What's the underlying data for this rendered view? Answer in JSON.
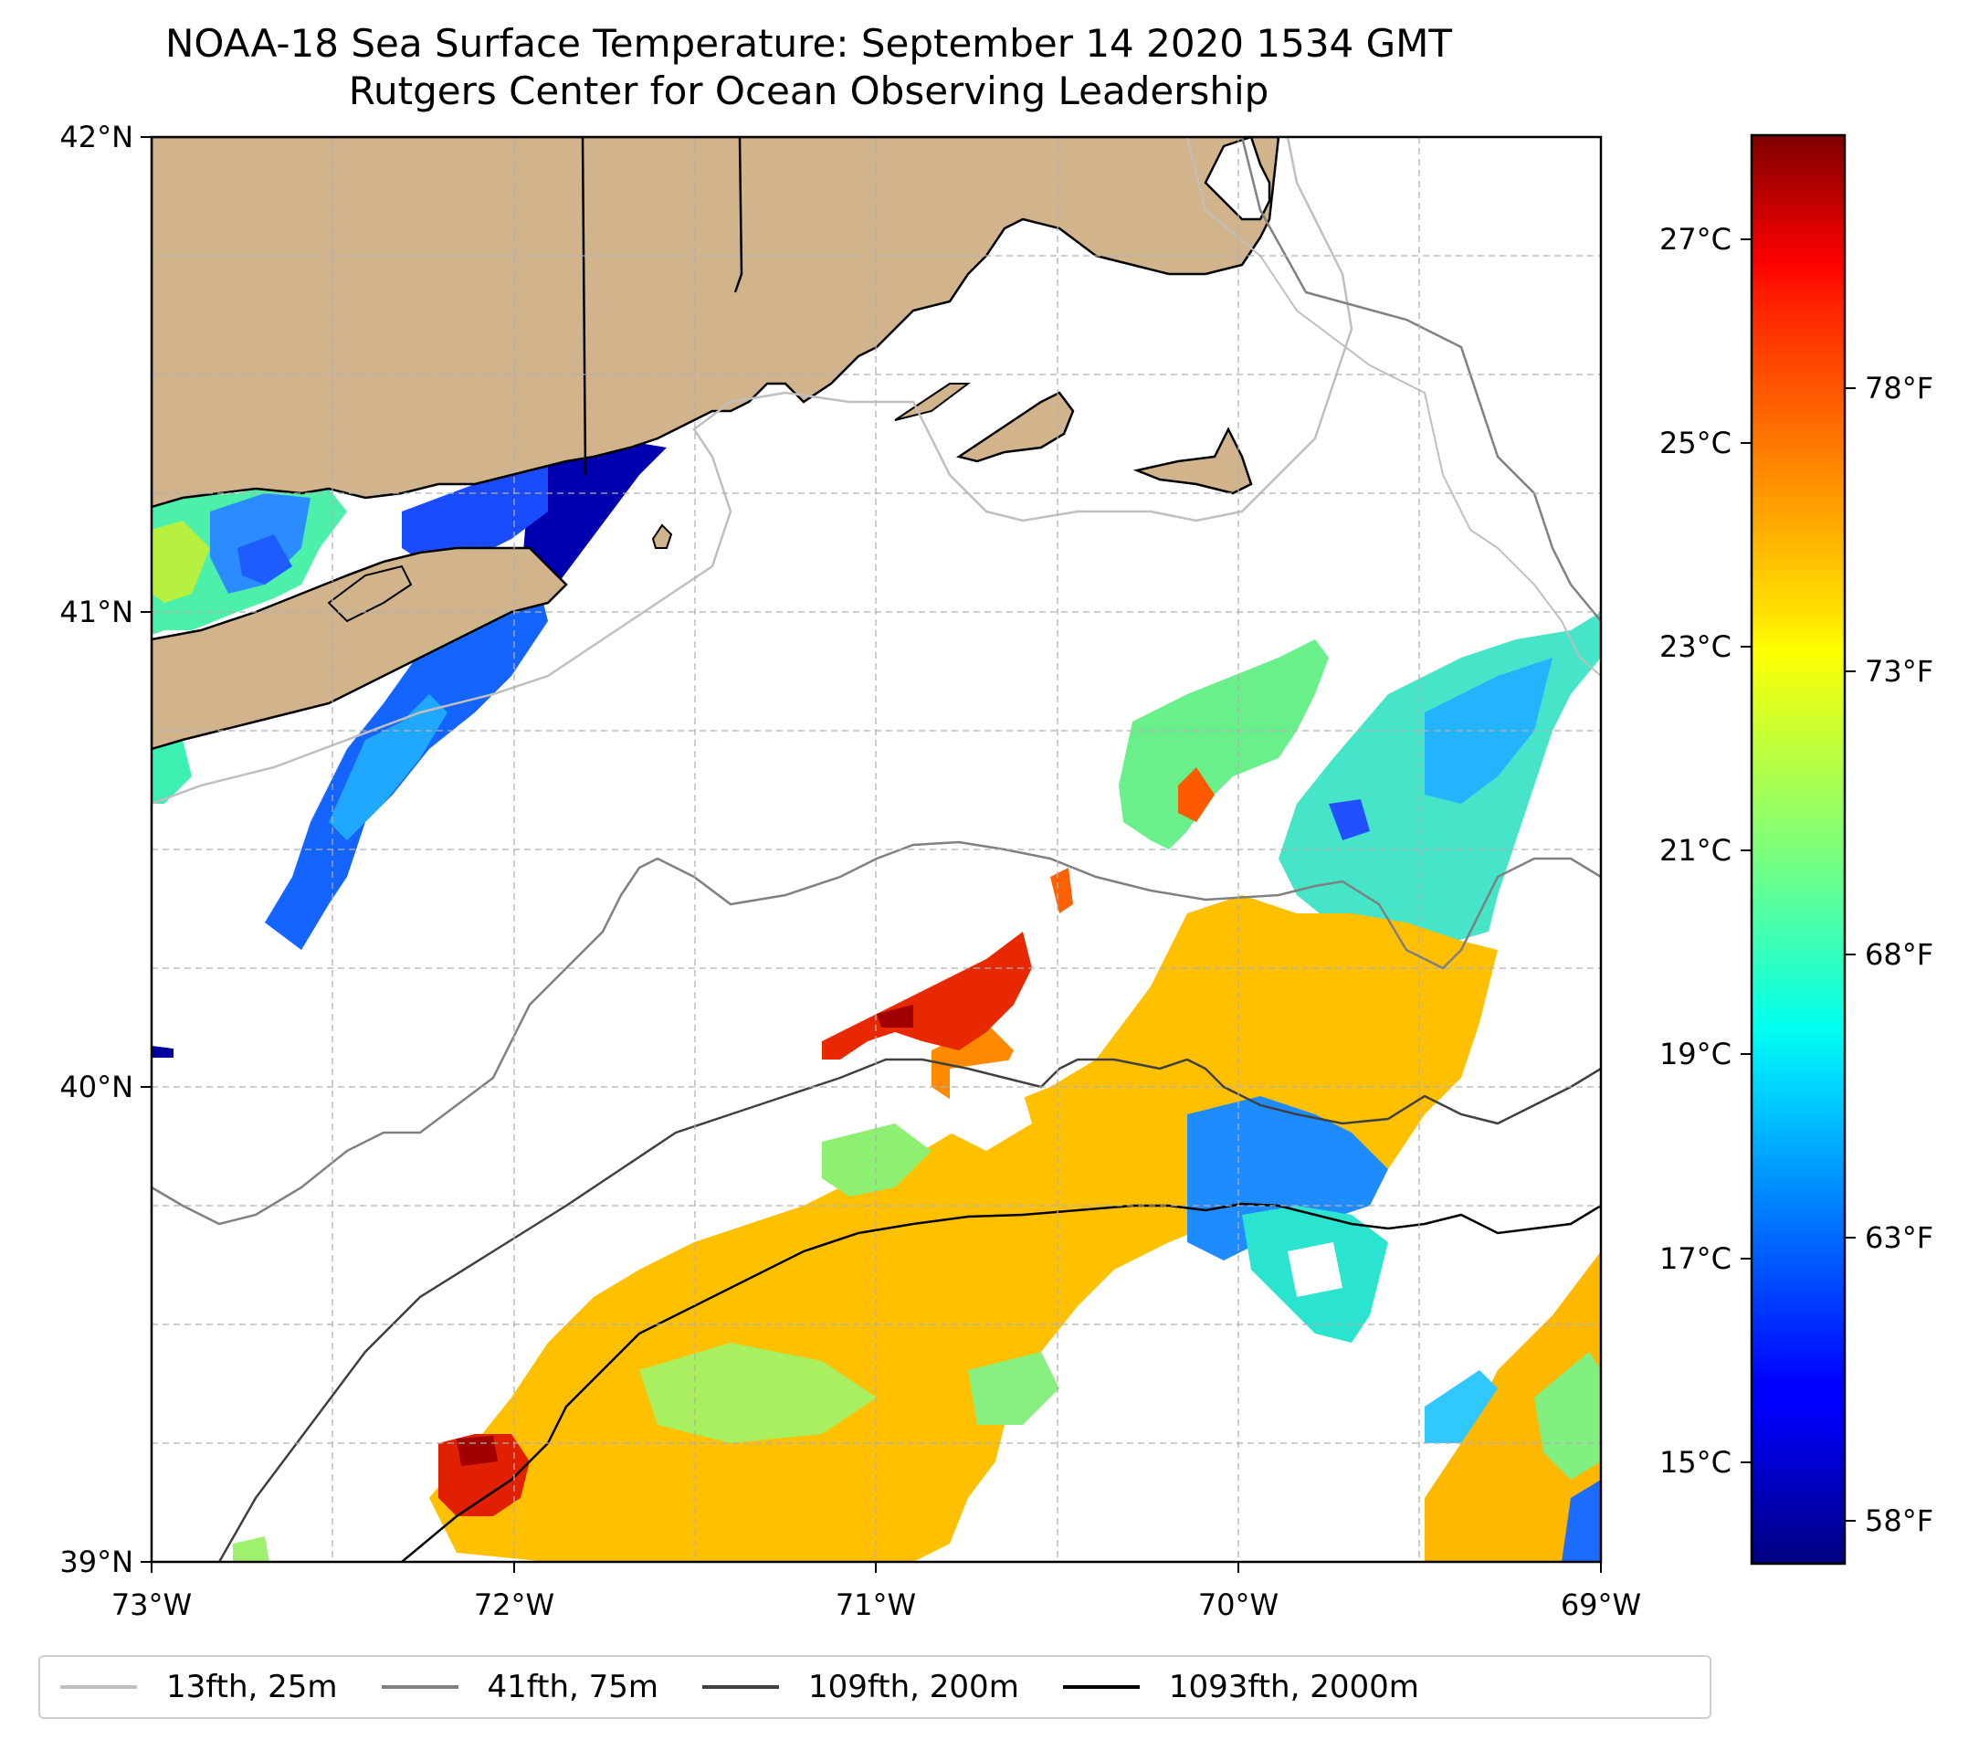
{
  "title": {
    "line1": "NOAA-18 Sea Surface Temperature: September 14 2020 1534 GMT",
    "line2": "Rutgers Center for Ocean Observing Leadership"
  },
  "map": {
    "lon_labels": [
      "73°W",
      "72°W",
      "71°W",
      "70°W",
      "69°W"
    ],
    "lat_labels": [
      "42°N",
      "41°N",
      "40°N",
      "39°N"
    ],
    "extent": {
      "lon": [
        -73,
        -69
      ],
      "lat": [
        39,
        42
      ]
    },
    "land_color": "#d2b48c"
  },
  "colorbar": {
    "celsius_labels": [
      "27°C",
      "25°C",
      "23°C",
      "21°C",
      "19°C",
      "17°C",
      "15°C"
    ],
    "fahrenheit_labels": [
      "78°F",
      "73°F",
      "68°F",
      "63°F",
      "58°F"
    ],
    "colormap": "jet"
  },
  "legend": {
    "items": [
      {
        "label": "13fth, 25m",
        "color": "#bfbfbf"
      },
      {
        "label": "41fth, 75m",
        "color": "#808080"
      },
      {
        "label": "109fth, 200m",
        "color": "#404040"
      },
      {
        "label": "1093fth, 2000m",
        "color": "#000000"
      }
    ]
  }
}
